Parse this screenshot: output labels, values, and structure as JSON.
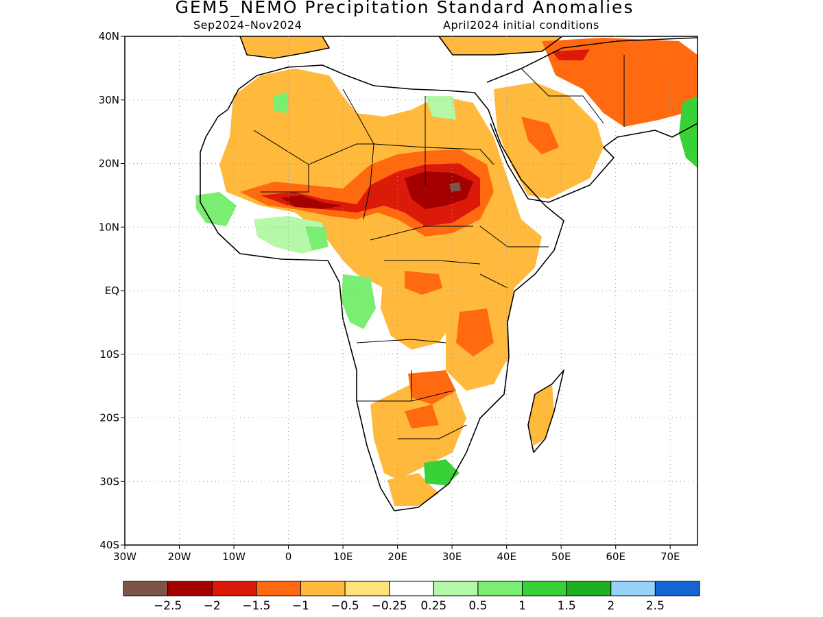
{
  "header": {
    "title": "GEM5_NEMO Precipitation Standard Anomalies",
    "period": "Sep2024–Nov2024",
    "init": "April2024 initial conditions"
  },
  "axes": {
    "lat_labels": [
      "40N",
      "30N",
      "20N",
      "10N",
      "EQ",
      "10S",
      "20S",
      "30S",
      "40S"
    ],
    "lon_labels": [
      "30W",
      "20W",
      "10W",
      "0",
      "10E",
      "20E",
      "30E",
      "40E",
      "50E",
      "60E",
      "70E"
    ],
    "lat_values": [
      40,
      30,
      20,
      10,
      0,
      -10,
      -20,
      -30,
      -40
    ],
    "lon_values": [
      -30,
      -20,
      -10,
      0,
      10,
      20,
      30,
      40,
      50,
      60,
      70
    ],
    "lon_range": [
      -30,
      75
    ],
    "lat_range": [
      -40,
      40
    ],
    "grid": "dotted"
  },
  "colorbar": {
    "colors": [
      "#7a5548",
      "#a40000",
      "#dc1a0a",
      "#ff6a10",
      "#ffb93c",
      "#ffe27a",
      "#ffffff",
      "#b4f8a8",
      "#7aee72",
      "#38d238",
      "#1eaf1e",
      "#96d2fa",
      "#1464d2"
    ],
    "labels": [
      "−2.5",
      "−2",
      "−1.5",
      "−1",
      "−0.5",
      "−0.25",
      "0.25",
      "0.5",
      "1",
      "1.5",
      "2",
      "2.5"
    ]
  }
}
